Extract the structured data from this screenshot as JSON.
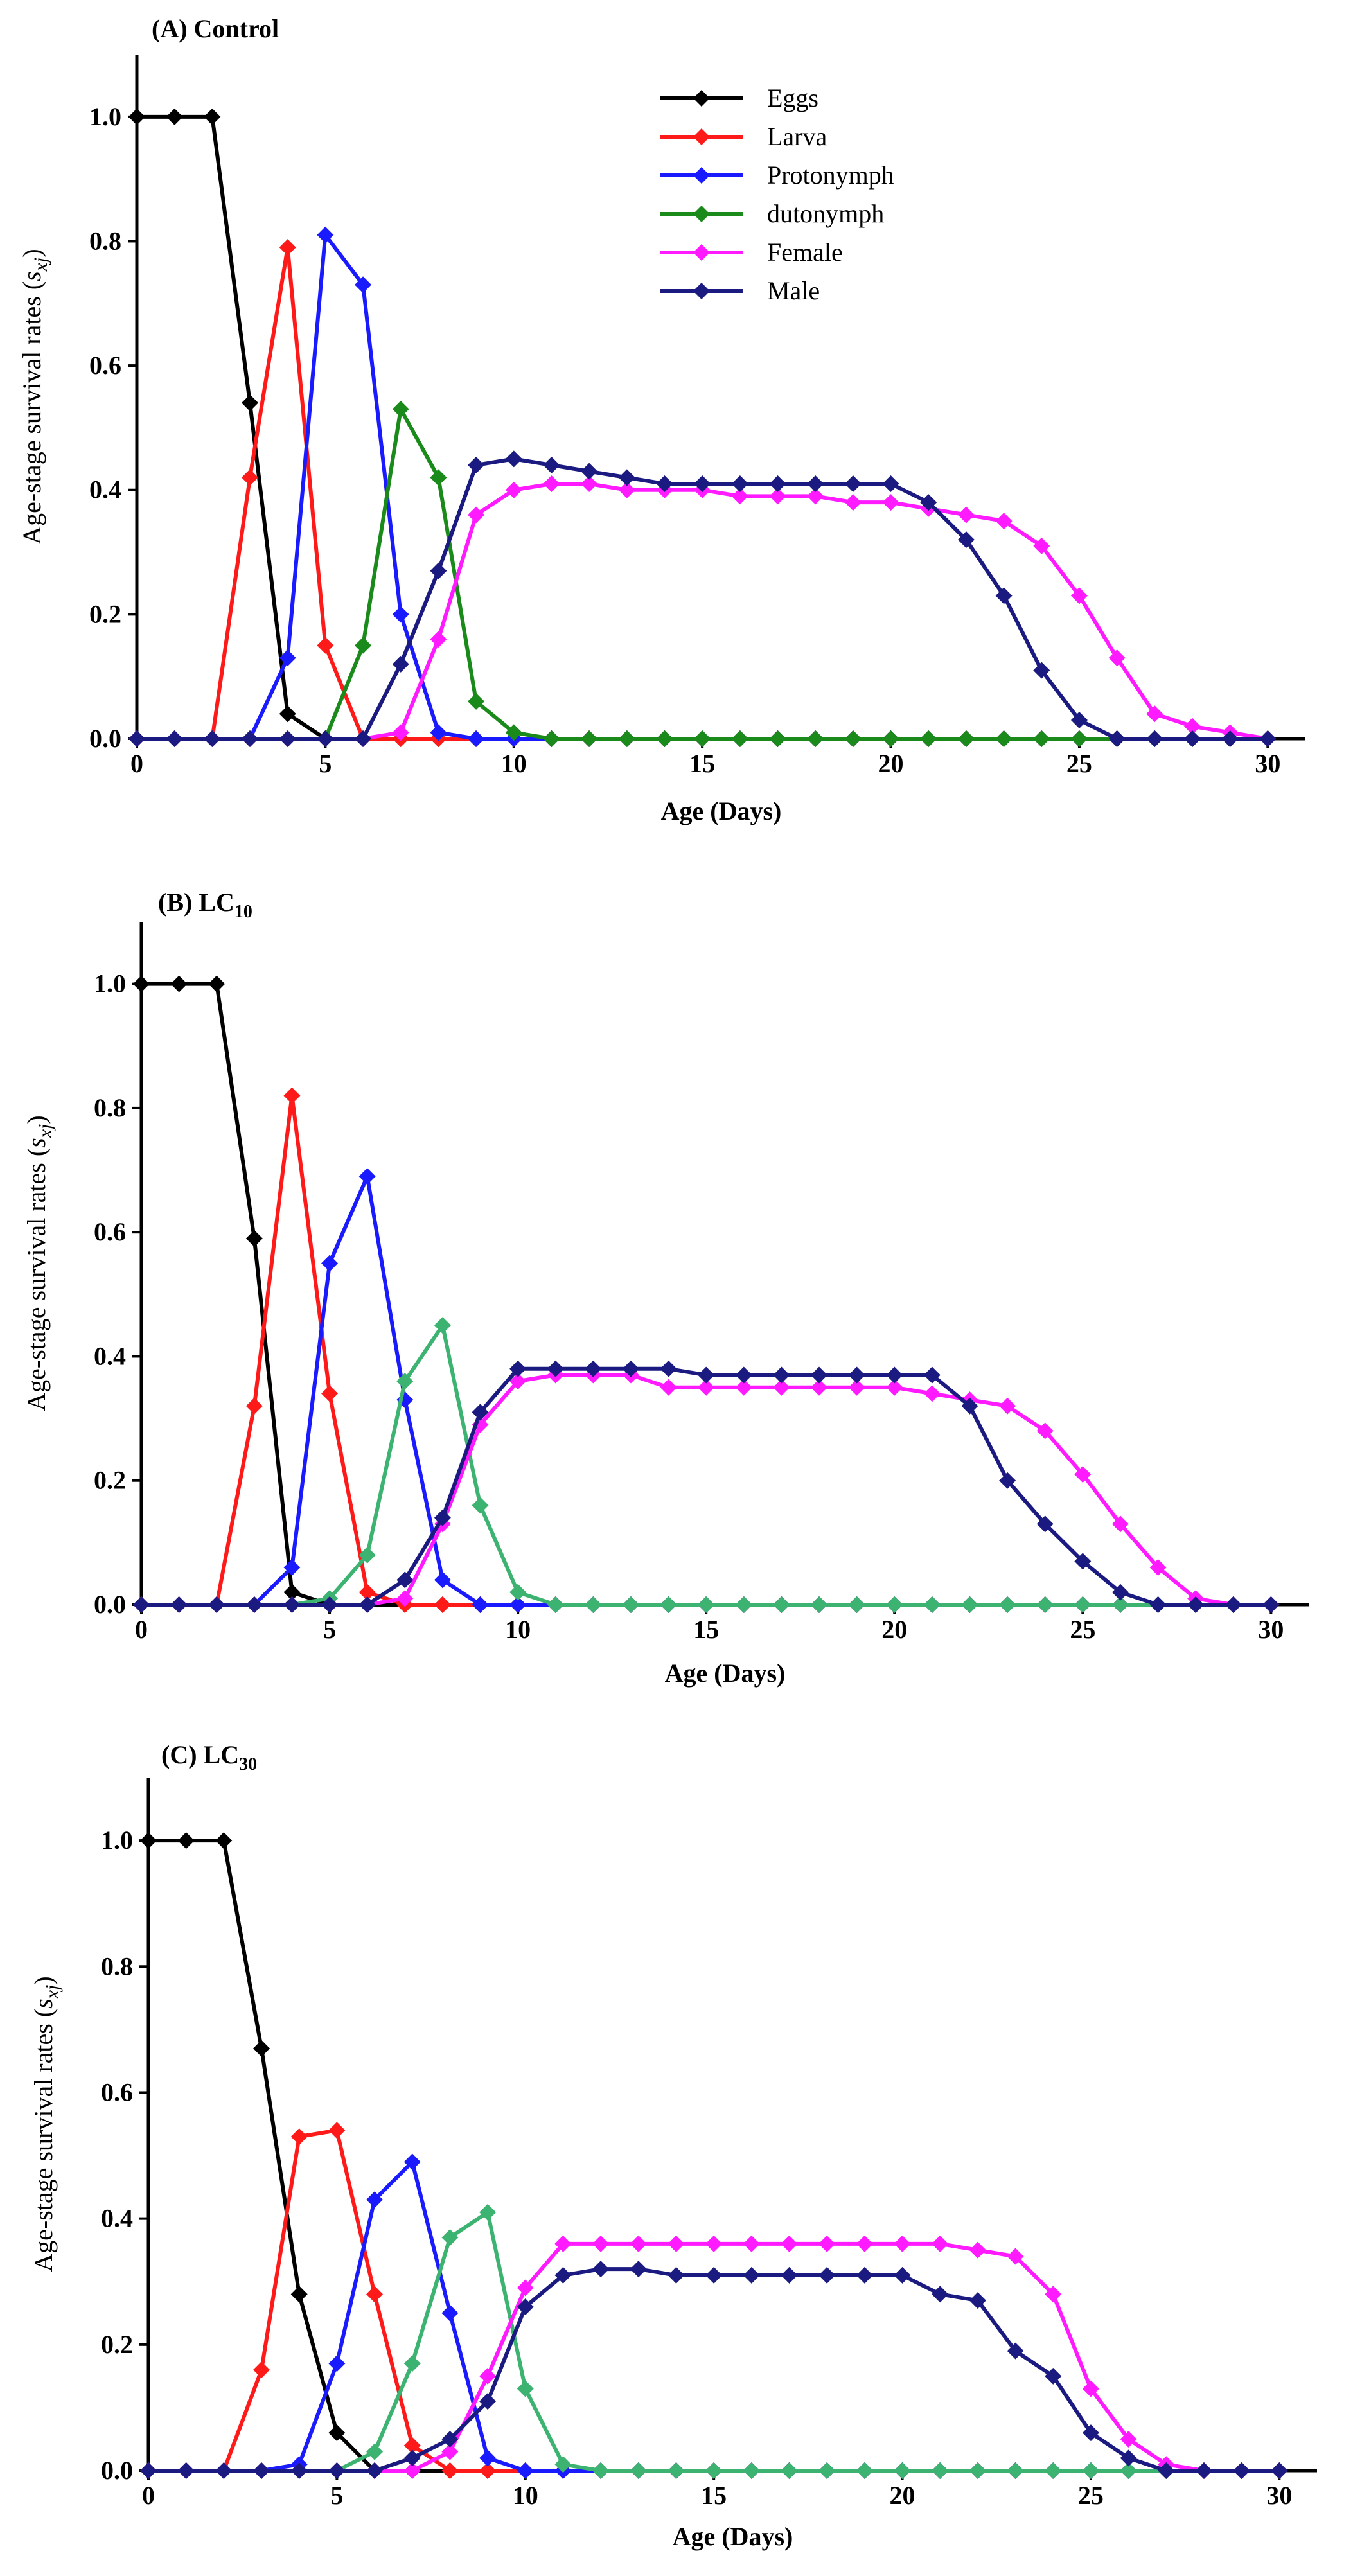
{
  "chart_data": [
    {
      "type": "line",
      "title": "(A) Control",
      "ylabel": [
        "Age-stage survival rates (",
        "s",
        "xj",
        ")"
      ],
      "xlabel": "Age (Days)",
      "xlim": [
        0,
        31
      ],
      "xticks": [
        0,
        5,
        10,
        15,
        20,
        25,
        30
      ],
      "ylim": [
        0,
        1.1
      ],
      "yticks": [
        {
          "value": 0,
          "label": "0.0"
        },
        0.2,
        0.4,
        0.6,
        0.8,
        {
          "value": 1,
          "label": "1.0"
        }
      ],
      "legend": "top-center",
      "x": [
        0,
        1,
        2,
        3,
        4,
        5,
        6,
        7,
        8,
        9,
        10,
        11,
        12,
        13,
        14,
        15,
        16,
        17,
        18,
        19,
        20,
        21,
        22,
        23,
        24,
        25,
        26,
        27,
        28,
        29,
        30
      ],
      "series": [
        {
          "name": "Eggs",
          "color": "#000000",
          "values": [
            1,
            1,
            1,
            0.54,
            0.04,
            0,
            0,
            0,
            0,
            0,
            0,
            0,
            0,
            0,
            0,
            0,
            0,
            0,
            0,
            0,
            0,
            0,
            0,
            0,
            0,
            0,
            0,
            0,
            0,
            0,
            0
          ]
        },
        {
          "name": "Larva",
          "color": "#ff1a1a",
          "values": [
            0,
            0,
            0,
            0.42,
            0.79,
            0.15,
            0,
            0,
            0,
            0,
            0,
            0,
            0,
            0,
            0,
            0,
            0,
            0,
            0,
            0,
            0,
            0,
            0,
            0,
            0,
            0,
            0,
            0,
            0,
            0,
            0
          ]
        },
        {
          "name": "Protonymph",
          "color": "#1a1aff",
          "values": [
            0,
            0,
            0,
            0,
            0.13,
            0.81,
            0.73,
            0.2,
            0.01,
            0,
            0,
            0,
            0,
            0,
            0,
            0,
            0,
            0,
            0,
            0,
            0,
            0,
            0,
            0,
            0,
            0,
            0,
            0,
            0,
            0,
            0
          ]
        },
        {
          "name": "dutonymph",
          "color": "#1a8a1a",
          "values": [
            0,
            0,
            0,
            0,
            0,
            0,
            0.15,
            0.53,
            0.42,
            0.06,
            0.01,
            0,
            0,
            0,
            0,
            0,
            0,
            0,
            0,
            0,
            0,
            0,
            0,
            0,
            0,
            0,
            0,
            0,
            0,
            0,
            0
          ]
        },
        {
          "name": "Female",
          "color": "#ff1aff",
          "values": [
            0,
            0,
            0,
            0,
            0,
            0,
            0,
            0.01,
            0.16,
            0.36,
            0.4,
            0.41,
            0.41,
            0.4,
            0.4,
            0.4,
            0.39,
            0.39,
            0.39,
            0.38,
            0.38,
            0.37,
            0.36,
            0.35,
            0.31,
            0.23,
            0.13,
            0.04,
            0.02,
            0.01,
            0
          ]
        },
        {
          "name": "Male",
          "color": "#1a1a80",
          "values": [
            0,
            0,
            0,
            0,
            0,
            0,
            0,
            0.12,
            0.27,
            0.44,
            0.45,
            0.44,
            0.43,
            0.42,
            0.41,
            0.41,
            0.41,
            0.41,
            0.41,
            0.41,
            0.41,
            0.38,
            0.32,
            0.23,
            0.11,
            0.03,
            0,
            0,
            0,
            0,
            0
          ]
        }
      ]
    },
    {
      "type": "line",
      "title": "(B) LC",
      "title_subscript": "10",
      "ylabel": [
        "Age-stage survival rates (",
        "s",
        "xj",
        ")"
      ],
      "xlabel": "Age (Days)",
      "xlim": [
        0,
        31
      ],
      "xticks": [
        0,
        5,
        10,
        15,
        20,
        25,
        30
      ],
      "ylim": [
        0,
        1.1
      ],
      "yticks": [
        {
          "value": 0,
          "label": "0.0"
        },
        0.2,
        0.4,
        0.6,
        0.8,
        {
          "value": 1,
          "label": "1.0"
        }
      ],
      "x": [
        0,
        1,
        2,
        3,
        4,
        5,
        6,
        7,
        8,
        9,
        10,
        11,
        12,
        13,
        14,
        15,
        16,
        17,
        18,
        19,
        20,
        21,
        22,
        23,
        24,
        25,
        26,
        27,
        28,
        29,
        30
      ],
      "series": [
        {
          "color": "#000000",
          "values": [
            1,
            1,
            1,
            0.59,
            0.02,
            0,
            0,
            0,
            0,
            0,
            0,
            0,
            0,
            0,
            0,
            0,
            0,
            0,
            0,
            0,
            0,
            0,
            0,
            0,
            0,
            0,
            0,
            0,
            0,
            0,
            0
          ]
        },
        {
          "color": "#ff1a1a",
          "values": [
            0,
            0,
            0,
            0.32,
            0.82,
            0.34,
            0.02,
            0,
            0,
            0,
            0,
            0,
            0,
            0,
            0,
            0,
            0,
            0,
            0,
            0,
            0,
            0,
            0,
            0,
            0,
            0,
            0,
            0,
            0,
            0,
            0
          ]
        },
        {
          "color": "#1a1aff",
          "values": [
            0,
            0,
            0,
            0,
            0.06,
            0.55,
            0.69,
            0.33,
            0.04,
            0,
            0,
            0,
            0,
            0,
            0,
            0,
            0,
            0,
            0,
            0,
            0,
            0,
            0,
            0,
            0,
            0,
            0,
            0,
            0,
            0,
            0
          ]
        },
        {
          "color": "#3cb371",
          "values": [
            0,
            0,
            0,
            0,
            0,
            0.01,
            0.08,
            0.36,
            0.45,
            0.16,
            0.02,
            0,
            0,
            0,
            0,
            0,
            0,
            0,
            0,
            0,
            0,
            0,
            0,
            0,
            0,
            0,
            0,
            0,
            0,
            0,
            0
          ]
        },
        {
          "color": "#ff1aff",
          "values": [
            0,
            0,
            0,
            0,
            0,
            0,
            0,
            0.01,
            0.13,
            0.29,
            0.36,
            0.37,
            0.37,
            0.37,
            0.35,
            0.35,
            0.35,
            0.35,
            0.35,
            0.35,
            0.35,
            0.34,
            0.33,
            0.32,
            0.28,
            0.21,
            0.13,
            0.06,
            0.01,
            0,
            0
          ]
        },
        {
          "color": "#1a1a80",
          "values": [
            0,
            0,
            0,
            0,
            0,
            0,
            0,
            0.04,
            0.14,
            0.31,
            0.38,
            0.38,
            0.38,
            0.38,
            0.38,
            0.37,
            0.37,
            0.37,
            0.37,
            0.37,
            0.37,
            0.37,
            0.32,
            0.2,
            0.13,
            0.07,
            0.02,
            0,
            0,
            0,
            0
          ]
        }
      ]
    },
    {
      "type": "line",
      "title": "(C) LC",
      "title_subscript": "30",
      "ylabel": [
        "Age-stage survival rates (",
        "s",
        "xj",
        ")"
      ],
      "xlabel": "Age (Days)",
      "xlim": [
        0,
        31
      ],
      "xticks": [
        0,
        5,
        10,
        15,
        20,
        25,
        30
      ],
      "ylim": [
        0,
        1.1
      ],
      "yticks": [
        {
          "value": 0,
          "label": "0.0"
        },
        0.2,
        0.4,
        0.6,
        0.8,
        {
          "value": 1,
          "label": "1.0"
        }
      ],
      "x": [
        0,
        1,
        2,
        3,
        4,
        5,
        6,
        7,
        8,
        9,
        10,
        11,
        12,
        13,
        14,
        15,
        16,
        17,
        18,
        19,
        20,
        21,
        22,
        23,
        24,
        25,
        26,
        27,
        28,
        29,
        30
      ],
      "series": [
        {
          "color": "#000000",
          "values": [
            1,
            1,
            1,
            0.67,
            0.28,
            0.06,
            0,
            0,
            0,
            0,
            0,
            0,
            0,
            0,
            0,
            0,
            0,
            0,
            0,
            0,
            0,
            0,
            0,
            0,
            0,
            0,
            0,
            0,
            0,
            0,
            0
          ]
        },
        {
          "color": "#ff1a1a",
          "values": [
            0,
            0,
            0,
            0.16,
            0.53,
            0.54,
            0.28,
            0.04,
            0,
            0,
            0,
            0,
            0,
            0,
            0,
            0,
            0,
            0,
            0,
            0,
            0,
            0,
            0,
            0,
            0,
            0,
            0,
            0,
            0,
            0,
            0
          ]
        },
        {
          "color": "#1a1aff",
          "values": [
            0,
            0,
            0,
            0,
            0.01,
            0.17,
            0.43,
            0.49,
            0.25,
            0.02,
            0,
            0,
            0,
            0,
            0,
            0,
            0,
            0,
            0,
            0,
            0,
            0,
            0,
            0,
            0,
            0,
            0,
            0,
            0,
            0,
            0
          ]
        },
        {
          "color": "#3cb371",
          "values": [
            0,
            0,
            0,
            0,
            0,
            0,
            0.03,
            0.17,
            0.37,
            0.41,
            0.13,
            0.01,
            0,
            0,
            0,
            0,
            0,
            0,
            0,
            0,
            0,
            0,
            0,
            0,
            0,
            0,
            0,
            0,
            0,
            0,
            0
          ]
        },
        {
          "color": "#ff1aff",
          "values": [
            0,
            0,
            0,
            0,
            0,
            0,
            0,
            0,
            0.03,
            0.15,
            0.29,
            0.36,
            0.36,
            0.36,
            0.36,
            0.36,
            0.36,
            0.36,
            0.36,
            0.36,
            0.36,
            0.36,
            0.35,
            0.34,
            0.28,
            0.13,
            0.05,
            0.01,
            0,
            0,
            0
          ]
        },
        {
          "color": "#1a1a80",
          "values": [
            0,
            0,
            0,
            0,
            0,
            0,
            0,
            0.02,
            0.05,
            0.11,
            0.26,
            0.31,
            0.32,
            0.32,
            0.31,
            0.31,
            0.31,
            0.31,
            0.31,
            0.31,
            0.31,
            0.28,
            0.27,
            0.19,
            0.15,
            0.06,
            0.02,
            0,
            0,
            0,
            0
          ]
        }
      ]
    }
  ]
}
